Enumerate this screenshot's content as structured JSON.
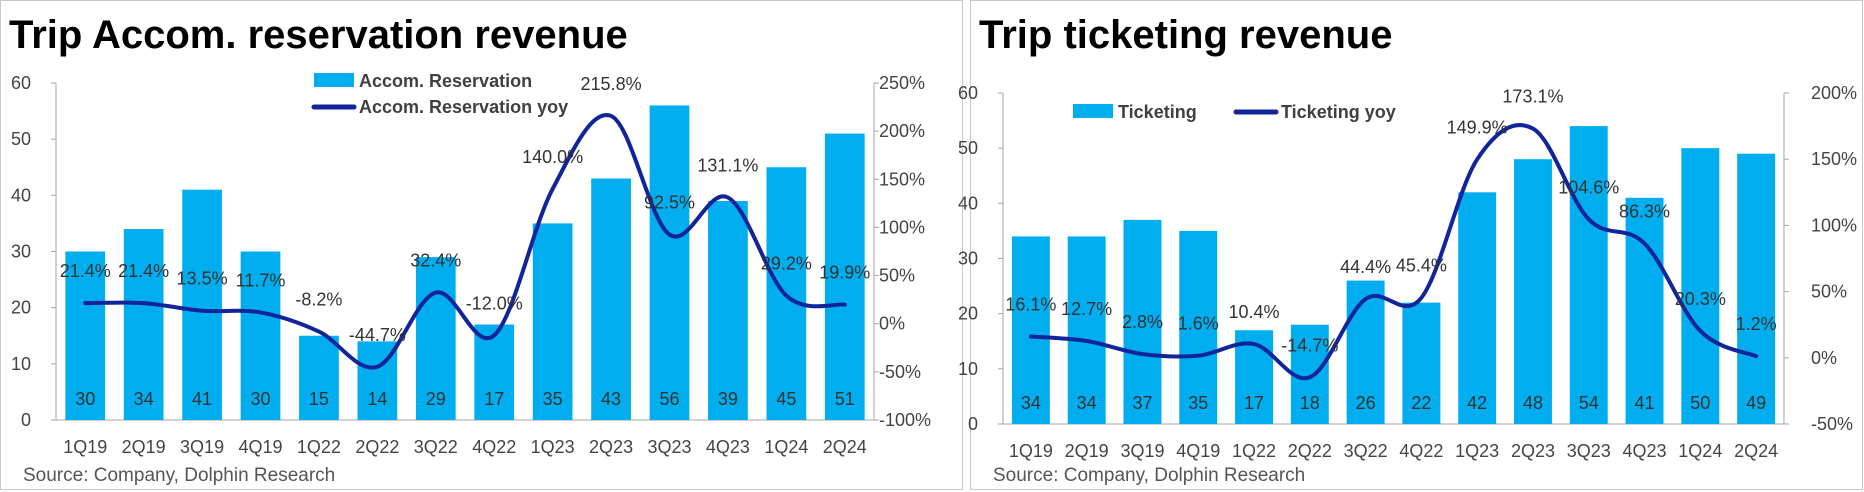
{
  "colors": {
    "bar": "#00AEEF",
    "line": "#12249A",
    "axis": "#a6a6a6"
  },
  "chart_data": [
    {
      "type": "bar",
      "title": "Trip Accom. reservation revenue",
      "source": "Source: Company, Dolphin Research",
      "categories": [
        "1Q19",
        "2Q19",
        "3Q19",
        "4Q19",
        "1Q22",
        "2Q22",
        "3Q22",
        "4Q22",
        "1Q23",
        "2Q23",
        "3Q23",
        "4Q23",
        "1Q24",
        "2Q24"
      ],
      "series": [
        {
          "name": "Accom. Reservation",
          "type": "bar",
          "axis": "left",
          "values": [
            30,
            34,
            41,
            30,
            15,
            14,
            29,
            17,
            35,
            43,
            56,
            39,
            45,
            51
          ],
          "labels": [
            "30",
            "34",
            "41",
            "30",
            "15",
            "14",
            "29",
            "17",
            "35",
            "43",
            "56",
            "39",
            "45",
            "51"
          ]
        },
        {
          "name": "Accom. Reservation yoy",
          "type": "line",
          "axis": "right",
          "values": [
            21.4,
            21.4,
            13.5,
            11.7,
            -8.2,
            -44.7,
            32.4,
            -12.0,
            140.0,
            215.8,
            92.5,
            131.1,
            29.2,
            19.9
          ],
          "labels": [
            "21.4%",
            "21.4%",
            "13.5%",
            "11.7%",
            "-8.2%",
            "-44.7%",
            "32.4%",
            "-12.0%",
            "140.0%",
            "215.8%",
            "92.5%",
            "131.1%",
            "29.2%",
            "19.9%"
          ]
        }
      ],
      "y_left": {
        "min": 0,
        "max": 60,
        "ticks": [
          "0",
          "10",
          "20",
          "30",
          "40",
          "50",
          "60"
        ]
      },
      "y_right": {
        "min": -100,
        "max": 250,
        "ticks": [
          "-100%",
          "-50%",
          "0%",
          "50%",
          "100%",
          "150%",
          "200%",
          "250%"
        ]
      },
      "legend": "top-center"
    },
    {
      "type": "bar",
      "title": "Trip ticketing revenue",
      "source": "Source: Company, Dolphin Research",
      "categories": [
        "1Q19",
        "2Q19",
        "3Q19",
        "4Q19",
        "1Q22",
        "2Q22",
        "3Q22",
        "4Q22",
        "1Q23",
        "2Q23",
        "3Q23",
        "4Q23",
        "1Q24",
        "2Q24"
      ],
      "series": [
        {
          "name": "Ticketing",
          "type": "bar",
          "axis": "left",
          "values": [
            34,
            34,
            37,
            35,
            17,
            18,
            26,
            22,
            42,
            48,
            54,
            41,
            50,
            49
          ],
          "labels": [
            "34",
            "34",
            "37",
            "35",
            "17",
            "18",
            "26",
            "22",
            "42",
            "48",
            "54",
            "41",
            "50",
            "49"
          ]
        },
        {
          "name": "Ticketing yoy",
          "type": "line",
          "axis": "right",
          "values": [
            16.1,
            12.7,
            2.8,
            1.6,
            10.4,
            -14.7,
            44.4,
            45.4,
            149.9,
            173.1,
            104.6,
            86.3,
            20.3,
            1.2
          ],
          "labels": [
            "16.1%",
            "12.7%",
            "2.8%",
            "1.6%",
            "10.4%",
            "-14.7%",
            "44.4%",
            "45.4%",
            "149.9%",
            "173.1%",
            "104.6%",
            "86.3%",
            "20.3%",
            "1.2%"
          ]
        }
      ],
      "y_left": {
        "min": 0,
        "max": 60,
        "ticks": [
          "0",
          "10",
          "20",
          "30",
          "40",
          "50",
          "60"
        ]
      },
      "y_right": {
        "min": -50,
        "max": 200,
        "ticks": [
          "-50%",
          "0%",
          "50%",
          "100%",
          "150%",
          "200%"
        ]
      },
      "legend": "top-left"
    }
  ]
}
